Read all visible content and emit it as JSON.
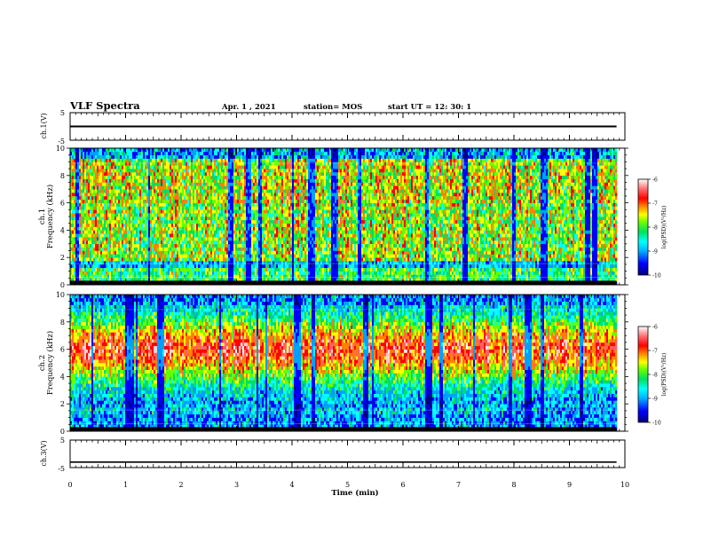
{
  "header": {
    "title": "VLF Spectra",
    "date": "Apr. 1 , 2021",
    "station": "station= MOS",
    "start": "start  UT =   12: 30: 1"
  },
  "chart_data": [
    {
      "type": "line",
      "panel": "ch1-voltage",
      "ylabel": "ch.1(V)",
      "ylim": [
        -5,
        5
      ],
      "yticks": [
        "5",
        "-5"
      ],
      "xlim": [
        0,
        10
      ],
      "series": [
        {
          "x": [
            0,
            9.85
          ],
          "y": [
            0,
            0
          ]
        }
      ]
    },
    {
      "type": "heatmap",
      "panel": "ch1-spectrogram",
      "ylabel_lines": [
        "ch.1",
        "Frequency  (kHz)"
      ],
      "ylim": [
        0,
        10
      ],
      "yticks": [
        "0",
        "2",
        "4",
        "6",
        "8",
        "10"
      ],
      "xlim": [
        0,
        10
      ],
      "data_end_min": 9.85,
      "colorbar": {
        "label": "log(PSD)(V²/Hz)",
        "range": [
          -10,
          -6
        ],
        "ticks": [
          "-6",
          "-7",
          "-8",
          "-9",
          "-10"
        ],
        "colors": [
          "#000080",
          "#0000ff",
          "#00a0ff",
          "#00ffff",
          "#00e060",
          "#66ff00",
          "#ffff00",
          "#ff8000",
          "#ff0000",
          "#ff6060",
          "#ffd0d0",
          "#ffffff"
        ]
      }
    },
    {
      "type": "heatmap",
      "panel": "ch2-spectrogram",
      "ylabel_lines": [
        "ch.2",
        "Frequency  (kHz)"
      ],
      "ylim": [
        0,
        10
      ],
      "yticks": [
        "0",
        "2",
        "4",
        "6",
        "8",
        "10"
      ],
      "xlim": [
        0,
        10
      ],
      "data_end_min": 9.85,
      "colorbar": {
        "label": "log(PSD)(V²/Hz)",
        "range": [
          -10,
          -6
        ],
        "ticks": [
          "-6",
          "-7",
          "-8",
          "-9",
          "-10"
        ],
        "colors": [
          "#000080",
          "#0000ff",
          "#00a0ff",
          "#00ffff",
          "#00e060",
          "#66ff00",
          "#ffff00",
          "#ff8000",
          "#ff0000",
          "#ff6060",
          "#ffd0d0",
          "#ffffff"
        ]
      }
    },
    {
      "type": "line",
      "panel": "ch3-voltage",
      "ylabel": "ch.3(V)",
      "ylim": [
        -5,
        5
      ],
      "yticks": [
        "5",
        "-5"
      ],
      "xlim": [
        0,
        10
      ],
      "xlabel": "Time  (min)",
      "xticks": [
        "0",
        "1",
        "2",
        "3",
        "4",
        "5",
        "6",
        "7",
        "8",
        "9",
        "10"
      ],
      "series": [
        {
          "x": [
            0,
            9.85
          ],
          "y": [
            -3,
            -3
          ]
        }
      ]
    }
  ]
}
